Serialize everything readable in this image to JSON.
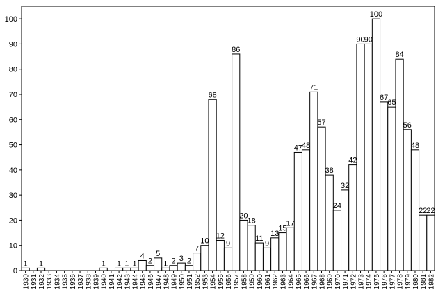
{
  "chart_data": {
    "type": "bar",
    "categories": [
      "1930",
      "1931",
      "1932",
      "1933",
      "1934",
      "1935",
      "1936",
      "1937",
      "1938",
      "1939",
      "1940",
      "1941",
      "1942",
      "1943",
      "1944",
      "1945",
      "1946",
      "1947",
      "1948",
      "1949",
      "1950",
      "1951",
      "1952",
      "1953",
      "1954",
      "1955",
      "1956",
      "1957",
      "1958",
      "1959",
      "1960",
      "1961",
      "1962",
      "1963",
      "1964",
      "1965",
      "1966",
      "1967",
      "1968",
      "1969",
      "1970",
      "1971",
      "1972",
      "1973",
      "1974",
      "1975",
      "1976",
      "1977",
      "1978",
      "1979",
      "1980",
      "1981",
      "1982"
    ],
    "values": [
      1,
      0,
      1,
      0,
      0,
      0,
      0,
      0,
      0,
      0,
      1,
      0,
      1,
      1,
      1,
      4,
      2,
      5,
      1,
      2,
      3,
      2,
      7,
      10,
      68,
      12,
      9,
      86,
      20,
      18,
      11,
      9,
      13,
      15,
      17,
      47,
      48,
      71,
      57,
      38,
      24,
      32,
      42,
      90,
      90,
      100,
      67,
      65,
      84,
      56,
      48,
      22,
      22
    ],
    "value_labels": [
      "1",
      "",
      "1",
      "",
      "",
      "",
      "",
      "",
      "",
      "",
      "1",
      "",
      "1",
      "1",
      "1",
      "4",
      "2",
      "5",
      "1",
      "2",
      "3",
      "2",
      "7",
      "10",
      "68",
      "12",
      "9",
      "86",
      "20",
      "18",
      "11",
      "9",
      "13",
      "15",
      "17",
      "47",
      "48",
      "71",
      "57",
      "38",
      "24",
      "32",
      "42",
      "90",
      "90",
      "100",
      "67",
      "65",
      "84",
      "56",
      "48",
      "22",
      "22"
    ],
    "y_ticks": [
      "0",
      "10",
      "20",
      "30",
      "40",
      "50",
      "60",
      "70",
      "80",
      "90",
      "100"
    ],
    "ylim": [
      0,
      105
    ],
    "title": "",
    "xlabel": "",
    "ylabel": "",
    "grid": false,
    "colors": {
      "bar_fill": "#ffffff",
      "bar_stroke": "#000000"
    }
  }
}
